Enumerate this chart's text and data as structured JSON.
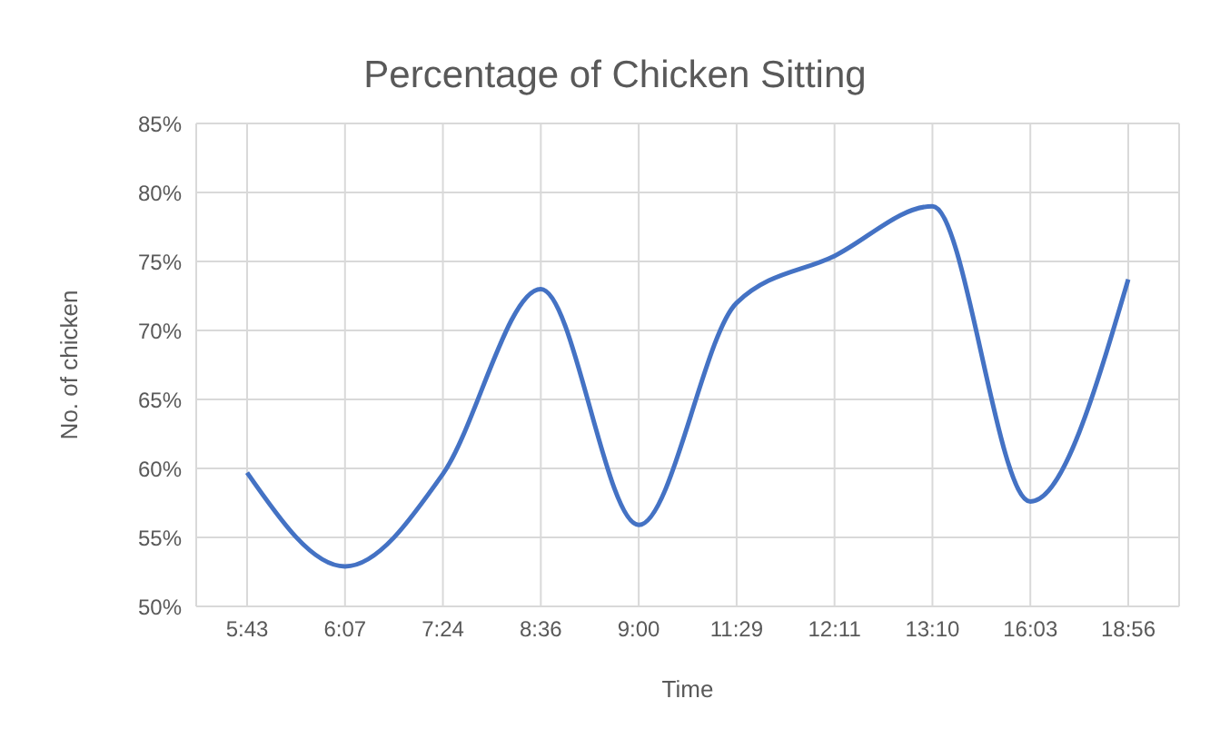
{
  "chart_data": {
    "type": "line",
    "title": "Percentage of Chicken Sitting",
    "xlabel": "Time",
    "ylabel": "No. of chicken",
    "categories": [
      "5:43",
      "6:07",
      "7:24",
      "8:36",
      "9:00",
      "11:29",
      "12:11",
      "13:10",
      "16:03",
      "18:56"
    ],
    "series": [
      {
        "color": "#4472c4",
        "values": [
          59.7,
          52.9,
          59.6,
          73.0,
          55.9,
          72.0,
          75.4,
          79.0,
          57.6,
          73.7
        ]
      }
    ],
    "ylim": [
      50,
      85
    ],
    "yticks": [
      {
        "value": 50,
        "label": "50%"
      },
      {
        "value": 55,
        "label": "55%"
      },
      {
        "value": 60,
        "label": "60%"
      },
      {
        "value": 65,
        "label": "65%"
      },
      {
        "value": 70,
        "label": "70%"
      },
      {
        "value": 75,
        "label": "75%"
      },
      {
        "value": 80,
        "label": "80%"
      },
      {
        "value": 85,
        "label": "85%"
      }
    ],
    "grid": true,
    "marker": "none",
    "line_style": "solid"
  }
}
